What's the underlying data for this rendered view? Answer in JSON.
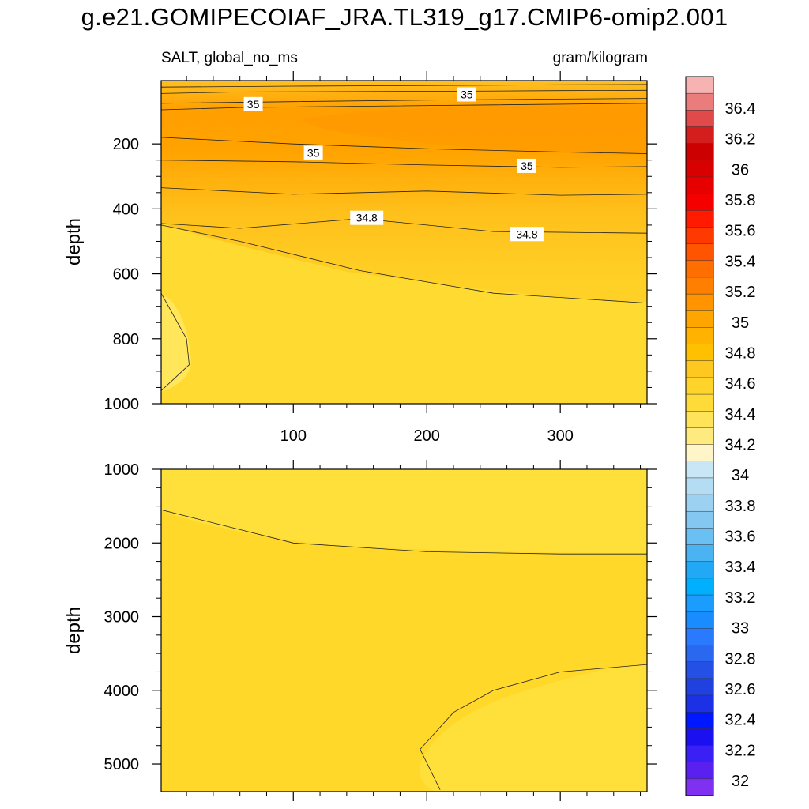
{
  "title": "g.e21.GOMIPECOIAF_JRA.TL319_g17.CMIP6-omip2.001",
  "subtitle_left": "SALT, global_no_ms",
  "subtitle_right": "gram/kilogram",
  "chart_data": [
    {
      "type": "contour",
      "panel": "upper",
      "xlabel": "",
      "ylabel": "depth",
      "xlim": [
        1,
        365
      ],
      "ylim": [
        1000,
        5
      ],
      "x_ticks": [
        100,
        200,
        300
      ],
      "y_ticks": [
        200,
        400,
        600,
        800,
        1000
      ],
      "contour_labels": [
        {
          "text": "35",
          "x": 70,
          "depth": 80
        },
        {
          "text": "35",
          "x": 230,
          "depth": 50
        },
        {
          "text": "35",
          "x": 115,
          "depth": 230
        },
        {
          "text": "35",
          "x": 275,
          "depth": 270
        },
        {
          "text": "34.8",
          "x": 155,
          "depth": 430
        },
        {
          "text": "34.8",
          "x": 275,
          "depth": 480
        }
      ],
      "contour_lines": [
        {
          "level": 34.9,
          "points": [
            [
              1,
              25
            ],
            [
              100,
              22
            ],
            [
              200,
              20
            ],
            [
              300,
              18
            ],
            [
              365,
              17
            ]
          ]
        },
        {
          "level": 34.95,
          "points": [
            [
              1,
              45
            ],
            [
              60,
              40
            ],
            [
              200,
              38
            ],
            [
              300,
              36
            ],
            [
              365,
              35
            ]
          ]
        },
        {
          "level": 35.0,
          "points": [
            [
              1,
              75
            ],
            [
              100,
              70
            ],
            [
              200,
              65
            ],
            [
              300,
              62
            ],
            [
              365,
              60
            ]
          ]
        },
        {
          "level": 35.05,
          "points": [
            [
              1,
              95
            ],
            [
              60,
              88
            ],
            [
              130,
              85
            ],
            [
              250,
              80
            ],
            [
              365,
              75
            ]
          ]
        },
        {
          "level": 35.0,
          "points": [
            [
              1,
              180
            ],
            [
              100,
              200
            ],
            [
              200,
              215
            ],
            [
              300,
              225
            ],
            [
              365,
              230
            ]
          ]
        },
        {
          "level": 34.95,
          "points": [
            [
              1,
              250
            ],
            [
              100,
              255
            ],
            [
              200,
              265
            ],
            [
              300,
              272
            ],
            [
              365,
              270
            ]
          ]
        },
        {
          "level": 34.9,
          "points": [
            [
              1,
              335
            ],
            [
              100,
              355
            ],
            [
              200,
              345
            ],
            [
              300,
              358
            ],
            [
              365,
              355
            ]
          ]
        },
        {
          "level": 34.8,
          "points": [
            [
              1,
              445
            ],
            [
              60,
              460
            ],
            [
              150,
              430
            ],
            [
              250,
              470
            ],
            [
              365,
              475
            ]
          ]
        },
        {
          "level": 34.7,
          "points": [
            [
              1,
              450
            ],
            [
              60,
              500
            ],
            [
              150,
              590
            ],
            [
              250,
              660
            ],
            [
              365,
              690
            ]
          ]
        },
        {
          "level": 34.6,
          "points": [
            [
              1,
              660
            ],
            [
              20,
              800
            ],
            [
              22,
              880
            ],
            [
              1,
              960
            ]
          ]
        }
      ]
    },
    {
      "type": "contour",
      "panel": "lower",
      "xlabel": "",
      "ylabel": "depth",
      "xlim": [
        1,
        365
      ],
      "ylim": [
        5375,
        1000
      ],
      "x_ticks": [
        100,
        200,
        300
      ],
      "y_ticks": [
        1000,
        2000,
        3000,
        4000,
        5000
      ],
      "contour_lines": [
        {
          "level": 34.7,
          "points": [
            [
              1,
              1550
            ],
            [
              100,
              2000
            ],
            [
              200,
              2120
            ],
            [
              300,
              2150
            ],
            [
              365,
              2150
            ]
          ]
        },
        {
          "level": 34.7,
          "points": [
            [
              365,
              3650
            ],
            [
              300,
              3750
            ],
            [
              250,
              4000
            ],
            [
              220,
              4300
            ],
            [
              195,
              4800
            ],
            [
              210,
              5350
            ]
          ]
        }
      ]
    }
  ],
  "colorbar": {
    "labels": [
      "36.4",
      "36.2",
      "36",
      "35.8",
      "35.6",
      "35.4",
      "35.2",
      "35",
      "34.8",
      "34.6",
      "34.4",
      "34.2",
      "34",
      "33.8",
      "33.6",
      "33.4",
      "33.2",
      "33",
      "32.8",
      "32.6",
      "32.4",
      "32.2",
      "32"
    ],
    "colors": [
      "#f7b2b2",
      "#ea7c7c",
      "#e04a4a",
      "#d41e1e",
      "#cc0000",
      "#d80000",
      "#e70000",
      "#f50000",
      "#ff1a00",
      "#ff3a00",
      "#ff5500",
      "#ff6e00",
      "#ff8000",
      "#ff9400",
      "#ffa500",
      "#ffb300",
      "#ffc000",
      "#ffc820",
      "#ffd42a",
      "#ffdb3a",
      "#ffe45a",
      "#ffea80",
      "#fff5c8",
      "#c8e6f5",
      "#b4dcf3",
      "#9dd1f2",
      "#84c8f2",
      "#6ac0f2",
      "#4cb3f2",
      "#22a8f5",
      "#00b0ff",
      "#1a9dff",
      "#198cff",
      "#2a7aff",
      "#2a68f0",
      "#2550e6",
      "#2040e0",
      "#1c30e6",
      "#0018ff",
      "#1a10f0",
      "#3a20f5",
      "#5a20f0",
      "#8030f0"
    ]
  }
}
